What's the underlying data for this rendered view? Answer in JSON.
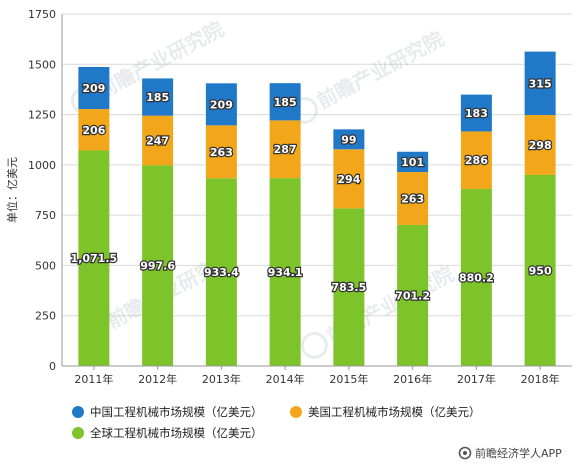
{
  "chart_data": {
    "type": "bar",
    "stacked": true,
    "title": "",
    "xlabel": "",
    "ylabel": "单位：亿美元",
    "ylim": [
      0,
      1750
    ],
    "yticks": [
      0,
      250,
      500,
      750,
      1000,
      1250,
      1500,
      1750
    ],
    "grid": true,
    "legend_position": "bottom",
    "categories": [
      "2011年",
      "2012年",
      "2013年",
      "2014年",
      "2015年",
      "2016年",
      "2017年",
      "2018年"
    ],
    "series": [
      {
        "name": "全球工程机械市场规模（亿美元）",
        "color": "#7dc42a",
        "values": [
          1071.5,
          997.6,
          933.4,
          934.1,
          783.5,
          701.2,
          880.2,
          950
        ],
        "labels": [
          "1,071.5",
          "997.6",
          "933.4",
          "934.1",
          "783.5",
          "701.2",
          "880.2",
          "950"
        ]
      },
      {
        "name": "美国工程机械市场规模（亿美元）",
        "color": "#f2a71b",
        "values": [
          206,
          247,
          263,
          287,
          294,
          263,
          286,
          298
        ],
        "labels": [
          "206",
          "247",
          "263",
          "287",
          "294",
          "263",
          "286",
          "298"
        ]
      },
      {
        "name": "中国工程机械市场规模（亿美元）",
        "color": "#1f78c8",
        "values": [
          209,
          185,
          209,
          185,
          99,
          101,
          183,
          315
        ],
        "labels": [
          "209",
          "185",
          "209",
          "185",
          "99",
          "101",
          "183",
          "315"
        ]
      }
    ],
    "legend_order": [
      2,
      1,
      0
    ]
  },
  "watermark": {
    "text": "前瞻产业研究院"
  },
  "brand": {
    "name": "前瞻经济学人APP",
    "icon": "qianzhan-logo-icon"
  },
  "colors": {
    "grid": "#d9d9d9",
    "axis": "#999999"
  }
}
